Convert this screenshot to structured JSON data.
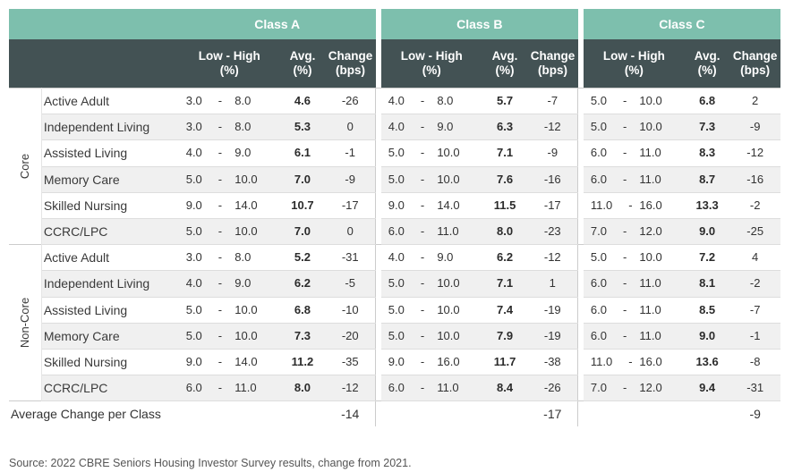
{
  "header": {
    "class_a": "Class A",
    "class_b": "Class B",
    "class_c": "Class C",
    "col_range_line1": "Low - High",
    "col_range_line2": "(%)",
    "col_avg_line1": "Avg.",
    "col_avg_line2": "(%)",
    "col_change_line1": "Change",
    "col_change_line2": "(bps)"
  },
  "groups": [
    {
      "label": "Core",
      "rows": [
        {
          "name": "Active Adult",
          "a": [
            "3.0",
            "8.0",
            "4.6",
            "-26"
          ],
          "b": [
            "4.0",
            "8.0",
            "5.7",
            "-7"
          ],
          "c": [
            "5.0",
            "10.0",
            "6.8",
            "2"
          ]
        },
        {
          "name": "Independent Living",
          "a": [
            "3.0",
            "8.0",
            "5.3",
            "0"
          ],
          "b": [
            "4.0",
            "9.0",
            "6.3",
            "-12"
          ],
          "c": [
            "5.0",
            "10.0",
            "7.3",
            "-9"
          ]
        },
        {
          "name": "Assisted Living",
          "a": [
            "4.0",
            "9.0",
            "6.1",
            "-1"
          ],
          "b": [
            "5.0",
            "10.0",
            "7.1",
            "-9"
          ],
          "c": [
            "6.0",
            "11.0",
            "8.3",
            "-12"
          ]
        },
        {
          "name": "Memory Care",
          "a": [
            "5.0",
            "10.0",
            "7.0",
            "-9"
          ],
          "b": [
            "5.0",
            "10.0",
            "7.6",
            "-16"
          ],
          "c": [
            "6.0",
            "11.0",
            "8.7",
            "-16"
          ]
        },
        {
          "name": "Skilled Nursing",
          "a": [
            "9.0",
            "14.0",
            "10.7",
            "-17"
          ],
          "b": [
            "9.0",
            "14.0",
            "11.5",
            "-17"
          ],
          "c": [
            "11.0",
            "16.0",
            "13.3",
            "-2"
          ]
        },
        {
          "name": "CCRC/LPC",
          "a": [
            "5.0",
            "10.0",
            "7.0",
            "0"
          ],
          "b": [
            "6.0",
            "11.0",
            "8.0",
            "-23"
          ],
          "c": [
            "7.0",
            "12.0",
            "9.0",
            "-25"
          ]
        }
      ]
    },
    {
      "label": "Non-Core",
      "rows": [
        {
          "name": "Active Adult",
          "a": [
            "3.0",
            "8.0",
            "5.2",
            "-31"
          ],
          "b": [
            "4.0",
            "9.0",
            "6.2",
            "-12"
          ],
          "c": [
            "5.0",
            "10.0",
            "7.2",
            "4"
          ]
        },
        {
          "name": "Independent Living",
          "a": [
            "4.0",
            "9.0",
            "6.2",
            "-5"
          ],
          "b": [
            "5.0",
            "10.0",
            "7.1",
            "1"
          ],
          "c": [
            "6.0",
            "11.0",
            "8.1",
            "-2"
          ]
        },
        {
          "name": "Assisted Living",
          "a": [
            "5.0",
            "10.0",
            "6.8",
            "-10"
          ],
          "b": [
            "5.0",
            "10.0",
            "7.4",
            "-19"
          ],
          "c": [
            "6.0",
            "11.0",
            "8.5",
            "-7"
          ]
        },
        {
          "name": "Memory Care",
          "a": [
            "5.0",
            "10.0",
            "7.3",
            "-20"
          ],
          "b": [
            "5.0",
            "10.0",
            "7.9",
            "-19"
          ],
          "c": [
            "6.0",
            "11.0",
            "9.0",
            "-1"
          ]
        },
        {
          "name": "Skilled Nursing",
          "a": [
            "9.0",
            "14.0",
            "11.2",
            "-35"
          ],
          "b": [
            "9.0",
            "16.0",
            "11.7",
            "-38"
          ],
          "c": [
            "11.0",
            "16.0",
            "13.6",
            "-8"
          ]
        },
        {
          "name": "CCRC/LPC",
          "a": [
            "6.0",
            "11.0",
            "8.0",
            "-12"
          ],
          "b": [
            "6.0",
            "11.0",
            "8.4",
            "-26"
          ],
          "c": [
            "7.0",
            "12.0",
            "9.4",
            "-31"
          ]
        }
      ]
    }
  ],
  "average_row": {
    "label": "Average Change per Class",
    "a": "-14",
    "b": "-17",
    "c": "-9"
  },
  "source": "Source: 2022 CBRE Seniors Housing Investor Survey results, change from 2021.",
  "colors": {
    "header_top": "#7dbfad",
    "header_bottom": "#435254",
    "row_alt": "#f0f0f0"
  }
}
